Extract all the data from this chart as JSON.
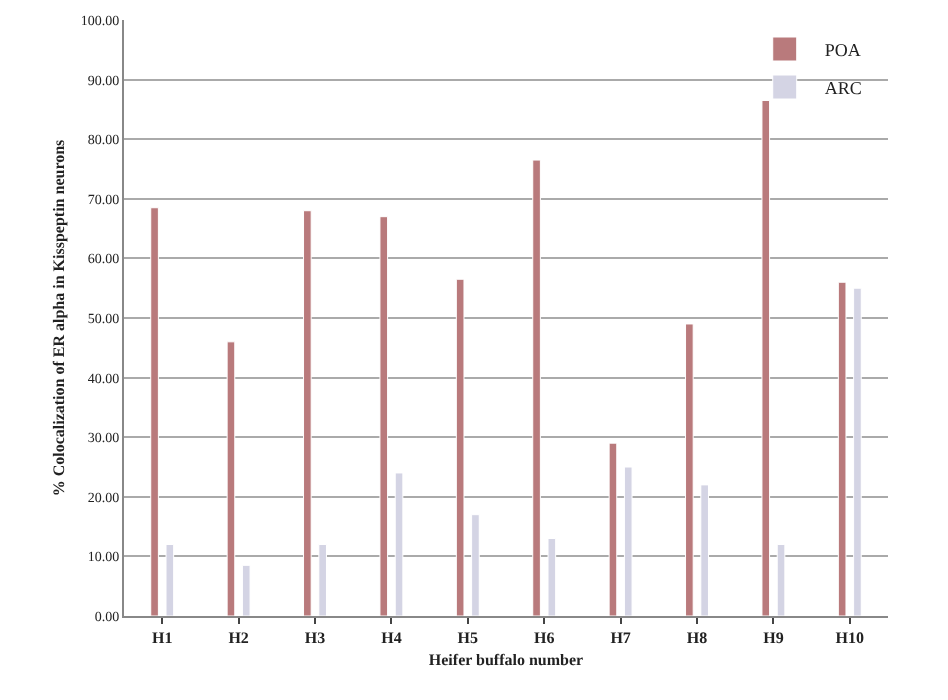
{
  "chart_data": {
    "type": "bar",
    "xlabel": "Heifer buffalo number",
    "ylabel": "% Colocalization of ER alpha in Kisspeptin neurons",
    "categories": [
      "H1",
      "H2",
      "H3",
      "H4",
      "H5",
      "H6",
      "H7",
      "H8",
      "H9",
      "H10"
    ],
    "series": [
      {
        "name": "POA",
        "color": "#b97a7c",
        "values": [
          68.5,
          46,
          68,
          67,
          56.5,
          76.5,
          29,
          49,
          86.5,
          56
        ]
      },
      {
        "name": "ARC",
        "color": "#d4d4e4",
        "values": [
          12,
          8.5,
          12,
          24,
          17,
          13,
          25,
          22,
          12,
          55
        ]
      }
    ],
    "ylim": [
      0,
      100
    ],
    "yticks": [
      {
        "value": 0,
        "label": "0.00"
      },
      {
        "value": 10,
        "label": "10.00"
      },
      {
        "value": 20,
        "label": "20.00"
      },
      {
        "value": 30,
        "label": "30.00"
      },
      {
        "value": 40,
        "label": "40.00"
      },
      {
        "value": 50,
        "label": "50.00"
      },
      {
        "value": 60,
        "label": "60.00"
      },
      {
        "value": 70,
        "label": "70.00"
      },
      {
        "value": 80,
        "label": "80.00"
      },
      {
        "value": 90,
        "label": "90.00"
      },
      {
        "value": 100,
        "label": "100.00"
      }
    ],
    "grid": "y",
    "legend": "top right"
  }
}
